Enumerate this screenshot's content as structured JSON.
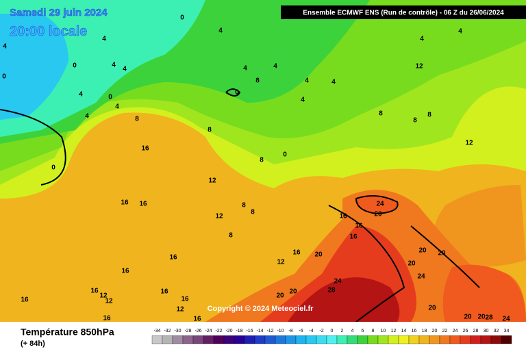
{
  "header": {
    "date": "Samedi 29 juin 2024",
    "time": "20:00 locale",
    "model": "Ensemble ECMWF ENS  (Run de contrôle)  -  06 Z du 26/06/2024",
    "copyright": "Copyright © 2024 Meteociel.fr"
  },
  "footer": {
    "parameter": "Température 850hPa",
    "lead": "(+ 84h)"
  },
  "legend": {
    "values": [
      -34,
      -32,
      -30,
      -28,
      -26,
      -24,
      -22,
      -20,
      -18,
      -16,
      -14,
      -12,
      -10,
      -8,
      -6,
      -4,
      -2,
      0,
      2,
      4,
      6,
      8,
      10,
      12,
      14,
      16,
      18,
      20,
      22,
      24,
      26,
      28,
      30,
      32,
      34
    ],
    "colors": [
      "#c8c8c8",
      "#b4b4b4",
      "#a08ca0",
      "#8c648c",
      "#78467a",
      "#641e64",
      "#50005a",
      "#3c0078",
      "#280096",
      "#1e1eb4",
      "#1e3cc8",
      "#1e5ad2",
      "#1e78dc",
      "#1e96e6",
      "#1eb4f0",
      "#28c8f0",
      "#3cdcf0",
      "#50f0f0",
      "#3cf0b4",
      "#32dc78",
      "#3cd23c",
      "#78dc1e",
      "#a0e61e",
      "#d2f01e",
      "#f0f01e",
      "#f0d21e",
      "#f0b41e",
      "#f0961e",
      "#f0781e",
      "#f05a1e",
      "#e63c1e",
      "#d21e1e",
      "#b41414",
      "#8c0a0a",
      "#500000"
    ]
  },
  "contour_labels": [
    0,
    4,
    4,
    0,
    4,
    4,
    4,
    0,
    4,
    4,
    0,
    4,
    4,
    8,
    4,
    4,
    4,
    8,
    8,
    8,
    0,
    8,
    8,
    8,
    12,
    12,
    16,
    12,
    16,
    16,
    8,
    8,
    12,
    8,
    24,
    20,
    16,
    16,
    16,
    16,
    20,
    12,
    16,
    16,
    16,
    16,
    12,
    12,
    16,
    16,
    12,
    16,
    16,
    24,
    28,
    20,
    20,
    20,
    20,
    20,
    24,
    20,
    20,
    20,
    24,
    28,
    4,
    4,
    0,
    0,
    4
  ]
}
